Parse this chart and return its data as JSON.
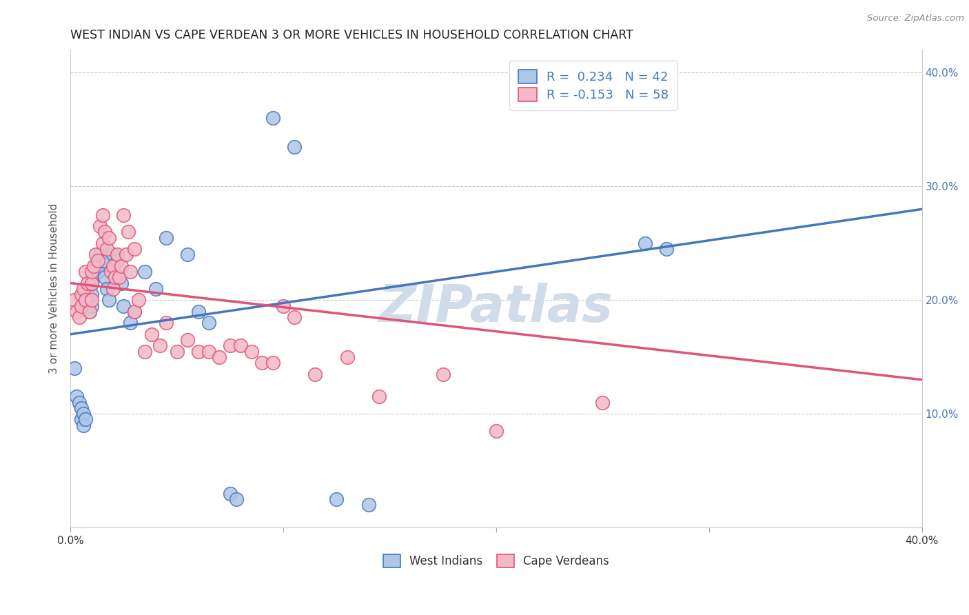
{
  "title": "WEST INDIAN VS CAPE VERDEAN 3 OR MORE VEHICLES IN HOUSEHOLD CORRELATION CHART",
  "source": "Source: ZipAtlas.com",
  "ylabel": "3 or more Vehicles in Household",
  "xlim": [
    0.0,
    40.0
  ],
  "ylim": [
    0.0,
    42.0
  ],
  "legend1_label": "R =  0.234   N = 42",
  "legend2_label": "R = -0.153   N = 58",
  "legend1_color": "#aec6e8",
  "legend2_color": "#f4b8c8",
  "line1_color": "#4477bb",
  "line2_color": "#dd5577",
  "watermark": "ZIPatlas",
  "watermark_color": "#d0dce8",
  "bottom_legend1": "West Indians",
  "bottom_legend2": "Cape Verdeans",
  "wi_x": [
    0.2,
    0.3,
    0.4,
    0.5,
    0.5,
    0.6,
    0.6,
    0.7,
    0.8,
    0.8,
    0.9,
    1.0,
    1.0,
    1.0,
    1.1,
    1.2,
    1.3,
    1.4,
    1.5,
    1.6,
    1.7,
    1.8,
    2.0,
    2.2,
    2.4,
    2.5,
    2.8,
    3.0,
    3.5,
    4.0,
    4.5,
    5.5,
    6.0,
    6.5,
    7.5,
    7.8,
    9.5,
    10.5,
    12.5,
    14.0,
    27.0,
    28.0
  ],
  "wi_y": [
    14.0,
    11.5,
    11.0,
    10.5,
    9.5,
    10.0,
    9.0,
    9.5,
    20.5,
    19.5,
    19.0,
    19.5,
    20.5,
    21.5,
    22.0,
    23.0,
    22.5,
    24.0,
    23.5,
    22.0,
    21.0,
    20.0,
    24.0,
    23.5,
    21.5,
    19.5,
    18.0,
    19.0,
    22.5,
    21.0,
    25.5,
    24.0,
    19.0,
    18.0,
    3.0,
    2.5,
    36.0,
    33.5,
    2.5,
    2.0,
    25.0,
    24.5
  ],
  "cv_x": [
    0.2,
    0.3,
    0.4,
    0.5,
    0.5,
    0.6,
    0.7,
    0.7,
    0.8,
    0.9,
    1.0,
    1.0,
    1.0,
    1.1,
    1.2,
    1.3,
    1.4,
    1.5,
    1.5,
    1.6,
    1.7,
    1.8,
    1.9,
    2.0,
    2.0,
    2.1,
    2.2,
    2.3,
    2.4,
    2.5,
    2.6,
    2.7,
    2.8,
    3.0,
    3.0,
    3.2,
    3.5,
    3.8,
    4.2,
    4.5,
    5.0,
    5.5,
    6.0,
    6.5,
    7.0,
    7.5,
    8.0,
    8.5,
    9.0,
    9.5,
    10.0,
    10.5,
    11.5,
    13.0,
    14.5,
    17.5,
    20.0,
    25.0
  ],
  "cv_y": [
    20.0,
    19.0,
    18.5,
    19.5,
    20.5,
    21.0,
    20.0,
    22.5,
    21.5,
    19.0,
    20.0,
    21.5,
    22.5,
    23.0,
    24.0,
    23.5,
    26.5,
    27.5,
    25.0,
    26.0,
    24.5,
    25.5,
    22.5,
    21.0,
    23.0,
    22.0,
    24.0,
    22.0,
    23.0,
    27.5,
    24.0,
    26.0,
    22.5,
    24.5,
    19.0,
    20.0,
    15.5,
    17.0,
    16.0,
    18.0,
    15.5,
    16.5,
    15.5,
    15.5,
    15.0,
    16.0,
    16.0,
    15.5,
    14.5,
    14.5,
    19.5,
    18.5,
    13.5,
    15.0,
    11.5,
    13.5,
    8.5,
    11.0
  ],
  "line1_x0": 0.0,
  "line1_y0": 17.0,
  "line1_x1": 40.0,
  "line1_y1": 28.0,
  "line2_x0": 0.0,
  "line2_y0": 21.5,
  "line2_x1": 40.0,
  "line2_y1": 13.0
}
